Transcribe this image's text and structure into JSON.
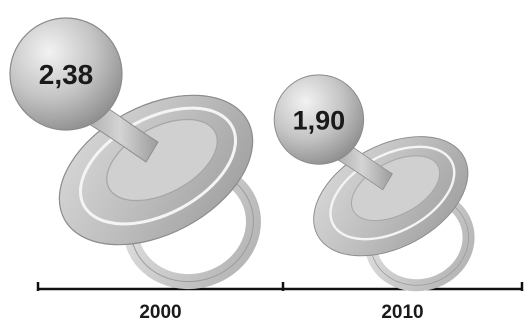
{
  "chart_data": {
    "type": "bar",
    "categories": [
      "2000",
      "2010"
    ],
    "values": [
      2.38,
      1.9
    ],
    "value_labels": [
      "2,38",
      "1,90"
    ],
    "title": "",
    "xlabel": "",
    "ylabel": "",
    "legend": "none",
    "grid": false,
    "mark_style": "pacifier-icon",
    "colors": {
      "mark_dark": "#8a8a8a",
      "mark_mid": "#bdbdbd",
      "mark_light": "#eeeeee",
      "axis": "#111111",
      "text": "#1a1a1a"
    }
  }
}
